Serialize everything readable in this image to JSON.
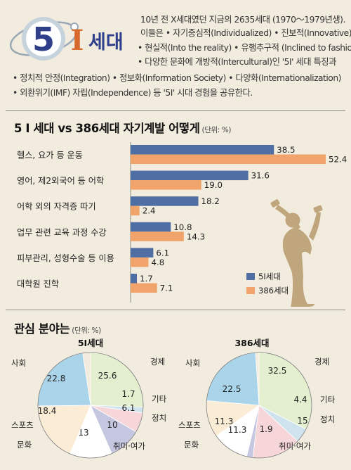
{
  "logo": {
    "number": "5",
    "letter": "I",
    "word": "세대"
  },
  "intro": {
    "lines": [
      "10년 전 X세대였던 지금의 2635세대 (1970～1979년생).",
      "이들은  • 자기중심적(Individualized)  • 진보적(Innovative)",
      "• 현실적(Into the reality)  • 유행추구적 (Inclined to fashion)",
      "• 다양한 문화에 개방적(Intercultural)인 '5I' 세대 특징과",
      "• 정치적 안정(Integration)  • 정보화(Information Society)  • 다양화(Internationalization)",
      "• 외환위기(IMF) 자립(Independence) 등 '5I' 시대 경험을 공유한다."
    ]
  },
  "bar_section": {
    "title": "5 I 세대 vs 386세대 자기계발 어떻게",
    "unit": "(단위: %)"
  },
  "pie_section": {
    "title": "관심 분야는",
    "unit": "(단위: %)"
  },
  "colors": {
    "series_5i": "#4f6ea3",
    "series_386": "#f0a46c",
    "figure": "#bfa67c"
  },
  "chart_data": [
    {
      "type": "bar",
      "orientation": "horizontal",
      "title": "5 I 세대 vs 386세대 자기계발 어떻게",
      "unit": "(단위: %)",
      "categories": [
        "헬스, 요가 등 운동",
        "영어, 제2외국어 등 어학",
        "어학 외의 자격증 따기",
        "업무 관련 교육 과정 수강",
        "피부관리, 성형수술 등 이용",
        "대학원 진학"
      ],
      "series": [
        {
          "name": "5I세대",
          "values": [
            38.5,
            31.6,
            18.2,
            10.8,
            6.1,
            1.7
          ]
        },
        {
          "name": "386세대",
          "values": [
            52.4,
            19.0,
            2.4,
            14.3,
            4.8,
            7.1
          ]
        }
      ],
      "value_labels": {
        "5I세대": [
          "38.5",
          "31.6",
          "18.2",
          "10.8",
          "6.1",
          "1.7"
        ],
        "386세대": [
          "52.4",
          "19.0",
          "2.4",
          "14.3",
          "4.8",
          "7.1"
        ]
      },
      "legend": "bottom-right"
    },
    {
      "type": "pie",
      "title": "5I세대",
      "slices": [
        {
          "label": "경제",
          "value": 25.6,
          "color": "#e3efcf"
        },
        {
          "label": "기타",
          "value": 1.7,
          "color": "#cfe3ee"
        },
        {
          "label": "정치",
          "value": 6.1,
          "color": "#f7d6da"
        },
        {
          "label": "취미·여가",
          "value": 10.0,
          "color": "#c5c6e0"
        },
        {
          "label": "문화",
          "value": 13.0,
          "color": "#ffffff"
        },
        {
          "label": "스포츠",
          "value": 18.4,
          "color": "#fbecd6"
        },
        {
          "label": "사회",
          "value": 22.8,
          "color": "#a9d4ea"
        }
      ]
    },
    {
      "type": "pie",
      "title": "386세대",
      "slices": [
        {
          "label": "경제",
          "value": 32.5,
          "color": "#e3efcf"
        },
        {
          "label": "기타",
          "value": 4.4,
          "color": "#cfe3ee"
        },
        {
          "label": "정치",
          "value": 15.0,
          "color": "#f7d6da"
        },
        {
          "label": "취미·여가",
          "value": 1.9,
          "color": "#c5c6e0"
        },
        {
          "label": "문화",
          "value": 11.3,
          "color": "#ffffff"
        },
        {
          "label": "스포츠",
          "value": 11.3,
          "color": "#fbecd6"
        },
        {
          "label": "사회",
          "value": 22.5,
          "color": "#a9d4ea"
        }
      ]
    }
  ]
}
